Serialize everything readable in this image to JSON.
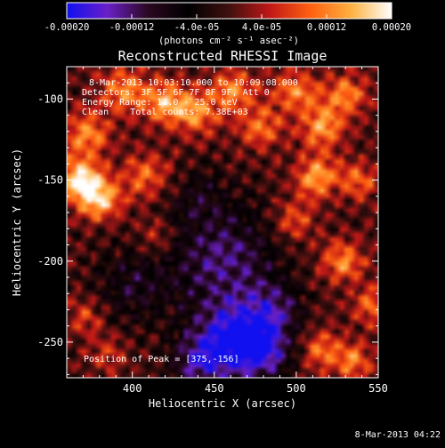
{
  "colorbar": {
    "tick_labels": [
      "-0.00020",
      "-0.00012",
      "-4.0e-05",
      "4.0e-05",
      "0.00012",
      "0.00020"
    ],
    "tick_values": [
      -0.0002,
      -0.00012,
      -4e-05,
      4e-05,
      0.00012,
      0.0002
    ],
    "range": [
      -0.0002,
      0.0002
    ],
    "units": "(photons cm⁻² s⁻¹ asec⁻²)",
    "colormap": [
      "#1010f0",
      "#6a20c8",
      "#2a0820",
      "#000000",
      "#401010",
      "#c01818",
      "#ff6010",
      "#ffb040",
      "#ffffff"
    ]
  },
  "plot": {
    "title": "Reconstructed RHESSI Image",
    "annotations": {
      "time_range": "8-Mar-2013 10:03:10.000 to 10:09:08.000",
      "detectors": "Detectors: 3F 5F 6F 7F 8F 9F, Att 0",
      "energy_range": "Energy Range: 12.0 - 25.0 keV",
      "method_counts": "Clean    Total counts: 7.38E+03",
      "peak": "Position of Peak = [375,-156]"
    },
    "xlabel": "Heliocentric X (arcsec)",
    "ylabel": "Heliocentric Y (arcsec)"
  },
  "footer": {
    "timestamp": "8-Mar-2013 04:22"
  },
  "chart_data": {
    "type": "heatmap",
    "title": "Reconstructed RHESSI Image",
    "xlabel": "Heliocentric X (arcsec)",
    "ylabel": "Heliocentric Y (arcsec)",
    "xlim": [
      360,
      550
    ],
    "ylim": [
      -272,
      -80
    ],
    "x_ticks": [
      400,
      450,
      500,
      550
    ],
    "y_ticks": [
      -100,
      -150,
      -200,
      -250
    ],
    "color_range": [
      -0.0002,
      0.0002
    ],
    "peak_position": [
      375,
      -156
    ],
    "grid": false,
    "sources": [
      {
        "x": 368,
        "y": -150,
        "sigma": 9,
        "amp": 0.00019
      },
      {
        "x": 380,
        "y": -162,
        "sigma": 9,
        "amp": 0.00016
      },
      {
        "x": 372,
        "y": -122,
        "sigma": 10,
        "amp": 0.00012
      },
      {
        "x": 395,
        "y": -95,
        "sigma": 10,
        "amp": 0.00012
      },
      {
        "x": 420,
        "y": -102,
        "sigma": 9,
        "amp": 0.00014
      },
      {
        "x": 408,
        "y": -148,
        "sigma": 10,
        "amp": 0.0001
      },
      {
        "x": 438,
        "y": -108,
        "sigma": 9,
        "amp": 0.00013
      },
      {
        "x": 462,
        "y": -95,
        "sigma": 10,
        "amp": 0.00012
      },
      {
        "x": 478,
        "y": -118,
        "sigma": 9,
        "amp": 0.0001
      },
      {
        "x": 500,
        "y": -96,
        "sigma": 10,
        "amp": 0.00011
      },
      {
        "x": 516,
        "y": -118,
        "sigma": 9,
        "amp": 0.00013
      },
      {
        "x": 530,
        "y": -98,
        "sigma": 9,
        "amp": 0.00012
      },
      {
        "x": 512,
        "y": -148,
        "sigma": 9,
        "amp": 0.00014
      },
      {
        "x": 538,
        "y": -150,
        "sigma": 8,
        "amp": 0.0001
      },
      {
        "x": 498,
        "y": -175,
        "sigma": 9,
        "amp": 9e-05
      },
      {
        "x": 528,
        "y": -200,
        "sigma": 9,
        "amp": 0.00012
      },
      {
        "x": 546,
        "y": -228,
        "sigma": 8,
        "amp": 0.0001
      },
      {
        "x": 515,
        "y": -255,
        "sigma": 9,
        "amp": 0.0001
      },
      {
        "x": 535,
        "y": -262,
        "sigma": 8,
        "amp": 0.00011
      },
      {
        "x": 372,
        "y": -235,
        "sigma": 8,
        "amp": 7e-05
      },
      {
        "x": 385,
        "y": -258,
        "sigma": 8,
        "amp": 6e-05
      },
      {
        "x": 415,
        "y": -185,
        "sigma": 8,
        "amp": 7e-05
      },
      {
        "x": 455,
        "y": -200,
        "sigma": 24,
        "amp": -0.00012
      },
      {
        "x": 462,
        "y": -250,
        "sigma": 16,
        "amp": -0.00019
      },
      {
        "x": 440,
        "y": -262,
        "sigma": 12,
        "amp": -0.00011
      },
      {
        "x": 485,
        "y": -230,
        "sigma": 12,
        "amp": -0.0001
      },
      {
        "x": 480,
        "y": -255,
        "sigma": 12,
        "amp": -0.00012
      },
      {
        "x": 400,
        "y": -215,
        "sigma": 16,
        "amp": -7e-05
      },
      {
        "x": 440,
        "y": -160,
        "sigma": 12,
        "amp": -5e-05
      }
    ]
  }
}
